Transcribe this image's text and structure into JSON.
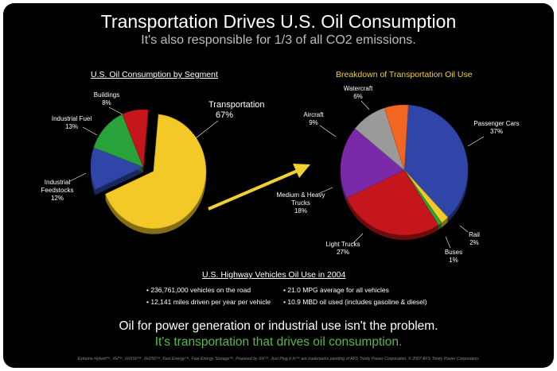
{
  "header": {
    "title": "Transportation Drives U.S. Oil Consumption",
    "subtitle": "It's also responsible for 1/3 of all CO2 emissions."
  },
  "chart_data": [
    {
      "type": "pie",
      "title": "U.S. Oil Consumption by Segment",
      "slices": [
        {
          "label": "Transportation",
          "value": 67,
          "value_label": "67%",
          "color": "#f2c926"
        },
        {
          "label": "Industrial Feedstocks",
          "value": 12,
          "value_label": "12%",
          "color": "#2f46a8"
        },
        {
          "label": "Industrial Fuel",
          "value": 13,
          "value_label": "13%",
          "color": "#2aa33a"
        },
        {
          "label": "Buildings",
          "value": 8,
          "value_label": "8%",
          "color": "#c4161c"
        }
      ],
      "exploded_slice": "Transportation"
    },
    {
      "type": "pie",
      "title": "Breakdown of Transportation Oil Use",
      "slices": [
        {
          "label": "Passenger Cars",
          "value": 37,
          "value_label": "37%",
          "color": "#2f46a8"
        },
        {
          "label": "Rail",
          "value": 2,
          "value_label": "2%",
          "color": "#f2c926"
        },
        {
          "label": "Buses",
          "value": 1,
          "value_label": "1%",
          "color": "#2aa33a"
        },
        {
          "label": "Light Trucks",
          "value": 27,
          "value_label": "27%",
          "color": "#c4161c"
        },
        {
          "label": "Medium & Heavy Trucks",
          "value": 18,
          "value_label": "18%",
          "color": "#7a2aa8"
        },
        {
          "label": "Aircraft",
          "value": 9,
          "value_label": "9%",
          "color": "#9a9a9a"
        },
        {
          "label": "Watercraft",
          "value": 6,
          "value_label": "6%",
          "color": "#f26522"
        }
      ]
    }
  ],
  "highway": {
    "title": "U.S. Highway Vehicles Oil Use in 2004",
    "stats": [
      "• 236,761,000 vehicles on the road",
      "• 12,141 miles driven per year per vehicle",
      "• 21.0 MPG average for all vehicles",
      "• 10.9 MBD oil used (includes gasoline & diesel)"
    ]
  },
  "footer": {
    "claim_line1": "Oil for power generation or industrial use isn't the problem.",
    "claim_line2": "It's transportation that drives oil consumption.",
    "legal": "Extreme Hybrid™, XH™, XH150™, XH250™, Fast Energy™, Fast Energy Storage™, Powered by XH™, Just Plug It In™ are trademarks pending of AFS Trinity Power Corporation. © 2007 AFS Trinity Power Corporation."
  },
  "colors": {
    "background": "#000000",
    "accent_yellow": "#f2d033",
    "accent_green": "#58b947",
    "arrow": "#f2d033"
  }
}
